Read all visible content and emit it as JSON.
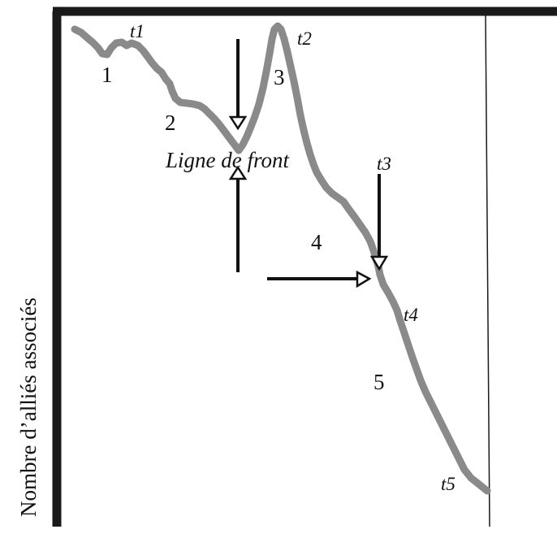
{
  "y_axis_label": "Nombre d’alliés associés",
  "front_line_label": "Ligne de front",
  "phase_labels": [
    "1",
    "2",
    "3",
    "4",
    "5"
  ],
  "time_labels": [
    "t1",
    "t2",
    "t3",
    "t4",
    "t5"
  ],
  "colors": {
    "axis": "#1a1a1a",
    "curve": "#8a8a8a",
    "arrow": "#111111",
    "text": "#111111"
  }
}
